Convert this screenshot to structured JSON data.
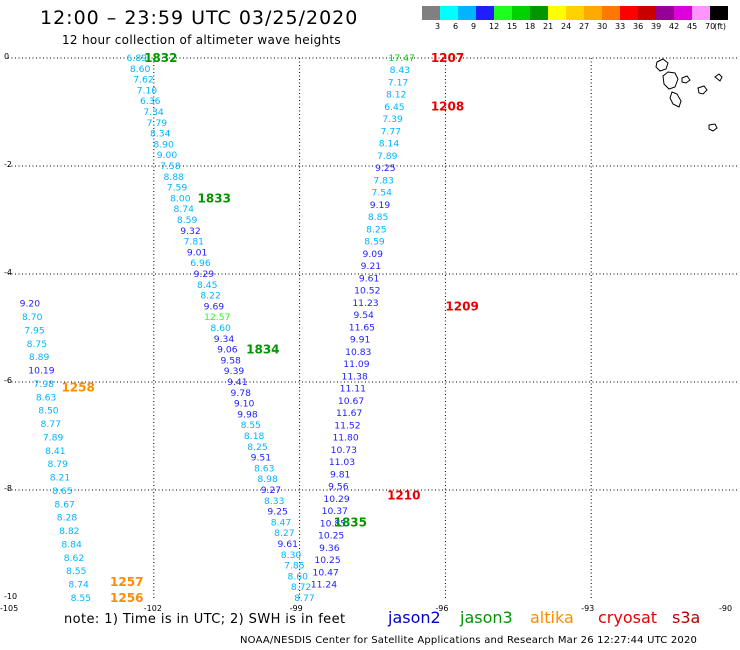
{
  "header": {
    "title": "12:00 – 23:59 UTC 03/25/2020",
    "subtitle": "12 hour collection of altimeter wave heights"
  },
  "colorscale": {
    "colors": [
      "#808080",
      "#00ffff",
      "#00b4ff",
      "#1e1eff",
      "#1eff1e",
      "#00d200",
      "#009600",
      "#ffff00",
      "#ffd200",
      "#ffaa00",
      "#ff7800",
      "#ff0000",
      "#c80000",
      "#960096",
      "#dc00dc",
      "#ff96ff",
      "#000000"
    ],
    "labels": [
      "3",
      "6",
      "9",
      "12",
      "15",
      "18",
      "21",
      "24",
      "27",
      "30",
      "33",
      "36",
      "39",
      "42",
      "45",
      "70",
      "(ft)"
    ]
  },
  "map": {
    "lon_range": [
      -105,
      -90
    ],
    "lat_range": [
      -10,
      0
    ],
    "x_ticks": [
      {
        "v": -105,
        "l": "-105"
      },
      {
        "v": -102,
        "l": "-102"
      },
      {
        "v": -99,
        "l": "-99"
      },
      {
        "v": -96,
        "l": "-96"
      },
      {
        "v": -93,
        "l": "-93"
      },
      {
        "v": -90,
        "l": "-90"
      }
    ],
    "y_ticks": [
      {
        "v": 0,
        "l": "0"
      },
      {
        "v": -2,
        "l": "-2"
      },
      {
        "v": -4,
        "l": "-4"
      },
      {
        "v": -6,
        "l": "-6"
      },
      {
        "v": -8,
        "l": "-8"
      },
      {
        "v": -10,
        "l": "-10"
      }
    ],
    "grid": true
  },
  "satellite_colors": {
    "jason2": "#0000cc",
    "jason3": "#009600",
    "altika": "#ff8c00",
    "cryosat": "#e60000",
    "s3a": "#b40000"
  },
  "chart_data": {
    "type": "scatter",
    "x_label": "",
    "y_label": "",
    "xlim": [
      -105,
      -90
    ],
    "ylim": [
      -10,
      0
    ],
    "time_labels": [
      {
        "lon": -102.2,
        "lat": 0,
        "text": "1832",
        "sat": "jason3"
      },
      {
        "lon": -101.1,
        "lat": -2.6,
        "text": "1833",
        "sat": "jason3"
      },
      {
        "lon": -100.1,
        "lat": -5.4,
        "text": "1834",
        "sat": "jason3"
      },
      {
        "lon": -98.3,
        "lat": -8.6,
        "text": "1835",
        "sat": "jason3"
      },
      {
        "lon": -96.3,
        "lat": 0,
        "text": "1207",
        "sat": "cryosat"
      },
      {
        "lon": -96.3,
        "lat": -0.9,
        "text": "1208",
        "sat": "cryosat"
      },
      {
        "lon": -96.0,
        "lat": -4.6,
        "text": "1209",
        "sat": "cryosat"
      },
      {
        "lon": -97.2,
        "lat": -8.1,
        "text": "1210",
        "sat": "cryosat"
      },
      {
        "lon": -103.9,
        "lat": -6.1,
        "text": "1258",
        "sat": "altika"
      },
      {
        "lon": -102.9,
        "lat": -9.7,
        "text": "1257",
        "sat": "altika"
      },
      {
        "lon": -102.9,
        "lat": -10.0,
        "text": "1256",
        "sat": "altika"
      }
    ],
    "tracks": [
      {
        "name": "track-1832",
        "start": [
          -102.35,
          0.0
        ],
        "end": [
          -98.9,
          -10.0
        ],
        "values": [
          "6.89",
          "8.60",
          "7.62",
          "7.10",
          "6.36",
          "7.34",
          "7.79",
          "8.34",
          "8.90",
          "9.00",
          "7.58",
          "8.88",
          "7.59",
          "8.00",
          "8.74",
          "8.59",
          "9.32",
          "7.81",
          "9.01",
          "6.96",
          "9.29",
          "8.45",
          "8.22",
          "9.69",
          "12.57",
          "8.60",
          "9.34",
          "9.06",
          "9.58",
          "9.39",
          "9.41",
          "9.78",
          "9.10",
          "9.98",
          "8.55",
          "8.18",
          "8.25",
          "9.51",
          "8.63",
          "8.98",
          "9.27",
          "8.33",
          "9.25",
          "8.47",
          "8.27",
          "9.61",
          "8.30",
          "7.85",
          "8.60",
          "8.72",
          "8.77"
        ]
      },
      {
        "name": "track-1207",
        "start": [
          -96.9,
          0.0
        ],
        "end": [
          -98.5,
          -9.75
        ],
        "values": [
          "17.47",
          "8.43",
          "7.17",
          "8.12",
          "6.45",
          "7.39",
          "7.77",
          "8.14",
          "7.89",
          "9.25",
          "7.83",
          "7.54",
          "9.19",
          "8.85",
          "8.25",
          "8.59",
          "9.09",
          "9.21",
          "9.61",
          "10.52",
          "11.23",
          "9.54",
          "11.65",
          "9.91",
          "10.83",
          "11.09",
          "11.38",
          "11.11",
          "10.67",
          "11.67",
          "11.52",
          "11.80",
          "10.73",
          "11.03",
          "9.81",
          "9.56",
          "10.29",
          "10.37",
          "10.85",
          "10.25",
          "9.36",
          "10.25",
          "10.47",
          "11.24"
        ]
      },
      {
        "name": "track-1258",
        "start": [
          -104.55,
          -4.55
        ],
        "end": [
          -103.5,
          -10.0
        ],
        "values": [
          "9.20",
          "8.70",
          "7.95",
          "8.75",
          "8.89",
          "10.19",
          "7.98",
          "8.63",
          "8.50",
          "8.77",
          "7.89",
          "8.41",
          "8.79",
          "8.21",
          "8.65",
          "8.67",
          "8.28",
          "8.82",
          "8.84",
          "8.62",
          "8.55",
          "8.74",
          "8.55"
        ]
      }
    ]
  },
  "legend": [
    {
      "label": "jason2",
      "sat": "jason2"
    },
    {
      "label": "jason3",
      "sat": "jason3"
    },
    {
      "label": "altika",
      "sat": "altika"
    },
    {
      "label": "cryosat",
      "sat": "cryosat"
    },
    {
      "label": "s3a",
      "sat": "s3a"
    }
  ],
  "footer": {
    "note": "note:  1) Time is in UTC;  2) SWH is in feet",
    "credit": "NOAA/NESDIS Center for Satellite Applications and Research    Mar 26 12:27:44 UTC 2020"
  }
}
